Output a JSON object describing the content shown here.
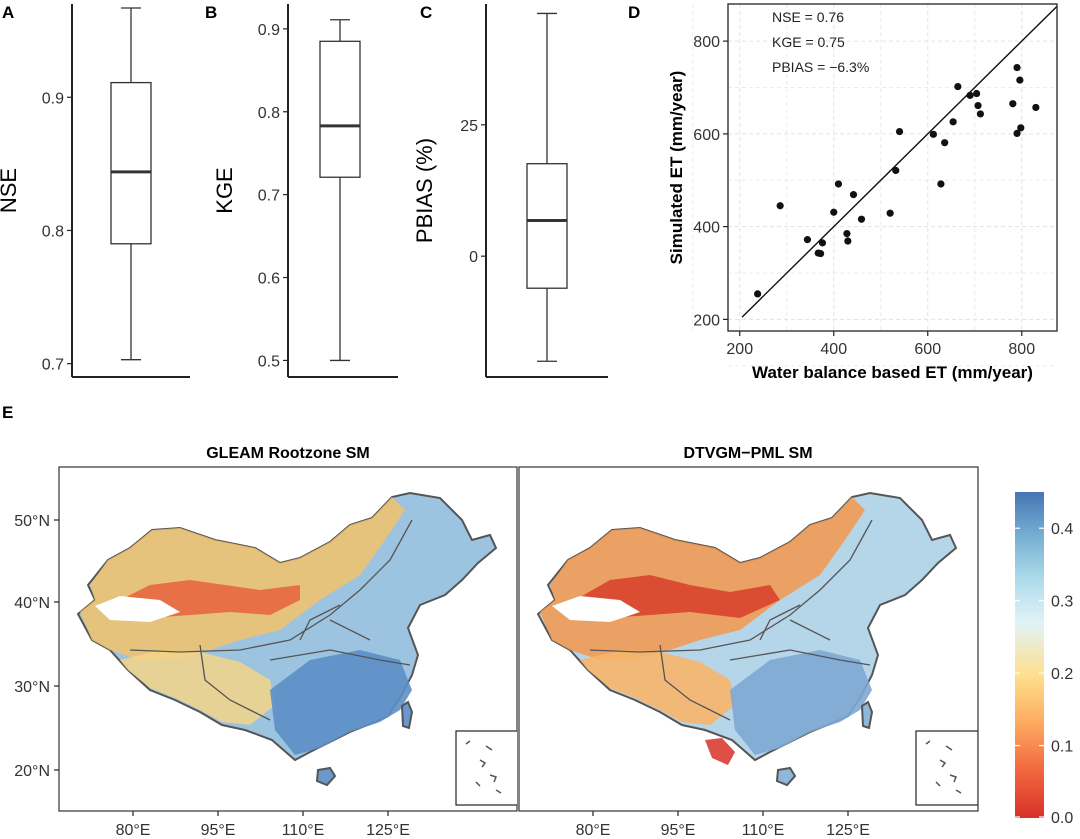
{
  "chart_data": [
    {
      "type": "boxplot",
      "panel": "A",
      "ylabel": "NSE",
      "ylim": [
        0.69,
        0.97
      ],
      "yticks": [
        0.7,
        0.8,
        0.9
      ],
      "ytick_labels": [
        "0.7",
        "0.8",
        "0.9"
      ],
      "box": {
        "min": 0.703,
        "q1": 0.79,
        "median": 0.844,
        "q3": 0.911,
        "max": 0.967
      }
    },
    {
      "type": "boxplot",
      "panel": "B",
      "ylabel": "KGE",
      "ylim": [
        0.48,
        0.93
      ],
      "yticks": [
        0.5,
        0.6,
        0.7,
        0.8,
        0.9
      ],
      "ytick_labels": [
        "0.5",
        "0.6",
        "0.7",
        "0.8",
        "0.9"
      ],
      "box": {
        "min": 0.5,
        "q1": 0.721,
        "median": 0.783,
        "q3": 0.885,
        "max": 0.911
      }
    },
    {
      "type": "boxplot",
      "panel": "C",
      "ylabel": "PBIAS (%)",
      "ylim": [
        -23,
        48
      ],
      "yticks": [
        0,
        25
      ],
      "ytick_labels": [
        "0",
        "25"
      ],
      "box": {
        "min": -20.0,
        "q1": -6.1,
        "median": 6.8,
        "q3": 17.6,
        "max": 46.2
      }
    },
    {
      "type": "scatter",
      "panel": "D",
      "xlabel": "Water balance based ET (mm/year)",
      "ylabel": "Simulated ET (mm/year)",
      "xlim": [
        175,
        875
      ],
      "ylim": [
        175,
        880
      ],
      "xticks": [
        200,
        400,
        600,
        800
      ],
      "yticks": [
        200,
        400,
        600,
        800
      ],
      "grid": true,
      "reference_line": "1:1",
      "annotations": [
        "NSE = 0.76",
        "KGE = 0.75",
        "PBIAS = −6.3%"
      ],
      "points": [
        [
          238,
          255
        ],
        [
          286,
          445
        ],
        [
          344,
          372
        ],
        [
          367,
          343
        ],
        [
          372,
          342
        ],
        [
          376,
          365
        ],
        [
          400,
          431
        ],
        [
          410,
          492
        ],
        [
          428,
          385
        ],
        [
          430,
          369
        ],
        [
          442,
          469
        ],
        [
          459,
          416
        ],
        [
          520,
          429
        ],
        [
          532,
          521
        ],
        [
          540,
          605
        ],
        [
          612,
          599
        ],
        [
          628,
          492
        ],
        [
          636,
          581
        ],
        [
          654,
          626
        ],
        [
          664,
          702
        ],
        [
          690,
          683
        ],
        [
          704,
          687
        ],
        [
          707,
          661
        ],
        [
          712,
          643
        ],
        [
          781,
          665
        ],
        [
          790,
          743
        ],
        [
          790,
          601
        ],
        [
          796,
          716
        ],
        [
          798,
          613
        ],
        [
          830,
          657
        ]
      ]
    },
    {
      "type": "heatmap",
      "panel": "E",
      "maps": [
        {
          "title": "GLEAM Rootzone SM"
        },
        {
          "title": "DTVGM−PML SM"
        }
      ],
      "lon_ticks": [
        "80°E",
        "95°E",
        "110°E",
        "125°E"
      ],
      "lat_ticks": [
        "20°N",
        "30°N",
        "40°N",
        "50°N"
      ],
      "colorbar": {
        "min": 0.0,
        "max": 0.45,
        "ticks": [
          0.0,
          0.1,
          0.2,
          0.3,
          0.4
        ],
        "tick_labels": [
          "0.0",
          "0.1",
          "0.2",
          "0.3",
          "0.4"
        ],
        "colors": [
          "#d73027",
          "#f46d43",
          "#fdae61",
          "#fee090",
          "#e0f3f8",
          "#abd9e9",
          "#74add1",
          "#4575b4"
        ]
      }
    }
  ],
  "panel_labels": {
    "a": "A",
    "b": "B",
    "c": "C",
    "d": "D",
    "e": "E"
  }
}
